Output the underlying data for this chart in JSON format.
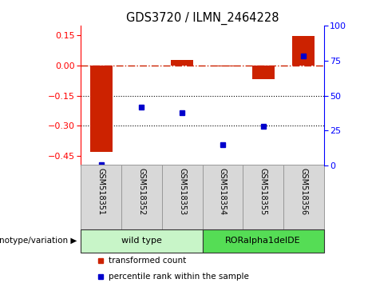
{
  "title": "GDS3720 / ILMN_2464228",
  "samples": [
    "GSM518351",
    "GSM518352",
    "GSM518353",
    "GSM518354",
    "GSM518355",
    "GSM518356"
  ],
  "groups": [
    "wild type",
    "wild type",
    "wild type",
    "RORalpha1delDE",
    "RORalpha1delDE",
    "RORalpha1delDE"
  ],
  "group_colors_map": {
    "wild type": "#c8f5c8",
    "RORalpha1delDE": "#55dd55"
  },
  "bar_values": [
    -0.43,
    0.0,
    0.028,
    -0.005,
    -0.068,
    0.148
  ],
  "dot_values": [
    1.0,
    42.0,
    38.0,
    15.0,
    28.0,
    78.0
  ],
  "bar_color": "#CC2200",
  "dot_color": "#0000CC",
  "ylim_left": [
    -0.5,
    0.2
  ],
  "ylim_right": [
    0,
    100
  ],
  "yticks_left": [
    -0.45,
    -0.3,
    -0.15,
    0.0,
    0.15
  ],
  "yticks_right": [
    0,
    25,
    50,
    75,
    100
  ],
  "hline_y": 0.0,
  "dotted_lines": [
    -0.15,
    -0.3
  ],
  "legend_items": [
    "transformed count",
    "percentile rank within the sample"
  ],
  "legend_colors": [
    "#CC2200",
    "#0000CC"
  ],
  "genotype_label": "genotype/variation",
  "background_color": "#ffffff",
  "bar_width": 0.55
}
